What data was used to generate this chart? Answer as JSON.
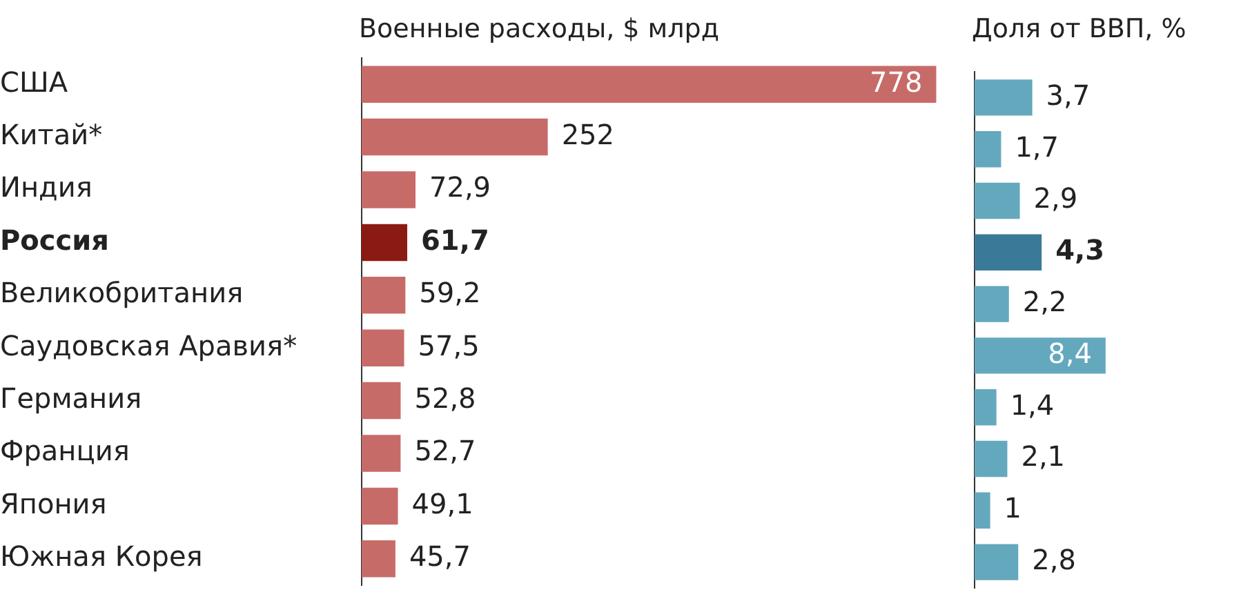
{
  "chart_data": [
    {
      "type": "bar",
      "orientation": "horizontal",
      "title": "Военные расходы, $ млрд",
      "categories": [
        "США",
        "Китай*",
        "Индия",
        "Россия",
        "Великобритания",
        "Саудовская Аравия*",
        "Германия",
        "Франция",
        "Япония",
        "Южная Корея"
      ],
      "values": [
        778,
        252,
        72.9,
        61.7,
        59.2,
        57.5,
        52.8,
        52.7,
        49.1,
        45.7
      ],
      "value_labels": [
        "778",
        "252",
        "72,9",
        "61,7",
        "59,2",
        "57,5",
        "52,8",
        "52,7",
        "49,1",
        "45,7"
      ],
      "colors": [
        "#c76b69",
        "#c76b69",
        "#c76b69",
        "#8b1a12",
        "#c76b69",
        "#c76b69",
        "#c76b69",
        "#c76b69",
        "#c76b69",
        "#c76b69"
      ],
      "tick_labels": "y",
      "grid": false,
      "legend": false
    },
    {
      "type": "bar",
      "orientation": "horizontal",
      "title": "Доля от ВВП, %",
      "categories": [
        null,
        null,
        null,
        null,
        null,
        null,
        null,
        null,
        null,
        null
      ],
      "values": [
        3.7,
        1.7,
        2.9,
        4.3,
        2.2,
        8.4,
        1.4,
        2.1,
        1,
        2.8
      ],
      "value_labels": [
        "3,7",
        "1,7",
        "2,9",
        "4,3",
        "2,2",
        "8,4",
        "1,4",
        "2,1",
        "1",
        "2,8"
      ],
      "colors": [
        "#64a8be",
        "#64a8be",
        "#64a8be",
        "#3a7a98",
        "#64a8be",
        "#64a8be",
        "#64a8be",
        "#64a8be",
        "#64a8be",
        "#64a8be"
      ],
      "tick_labels": false,
      "grid": false,
      "legend": false
    }
  ]
}
